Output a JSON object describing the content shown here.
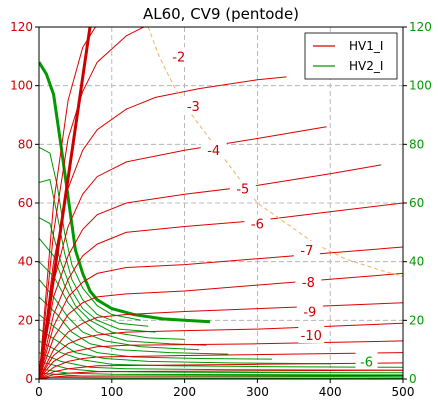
{
  "chart_data": {
    "type": "line",
    "title": "AL60, CV9 (pentode)",
    "xlabel": "",
    "ylabel": "",
    "xlim": [
      0,
      500
    ],
    "ylim_left": [
      0,
      120
    ],
    "ylim_right": [
      0,
      120
    ],
    "x_ticks": [
      "0",
      "100",
      "200",
      "300",
      "400",
      "500"
    ],
    "y_ticks_left": [
      "0",
      "20",
      "40",
      "60",
      "80",
      "100",
      "120"
    ],
    "y_ticks_right": [
      "0",
      "20",
      "40",
      "60",
      "80",
      "100",
      "120"
    ],
    "grid": true,
    "legend": {
      "position": "top-right",
      "entries": [
        {
          "label": "HV1_I",
          "color": "#dd0000"
        },
        {
          "label": "HV2_I",
          "color": "#009900"
        }
      ]
    },
    "colors": {
      "hv1": "#dd0000",
      "hv2": "#009900",
      "loadline": "#cc0000",
      "dissipation": "#f0b060",
      "grid": "#aaaaaa"
    },
    "hv1_series": [
      {
        "label": "-2",
        "points": [
          [
            0,
            0
          ],
          [
            20,
            60
          ],
          [
            40,
            95
          ],
          [
            60,
            113
          ],
          [
            80,
            121
          ]
        ],
        "label_at": [
          192,
          110
        ]
      },
      {
        "label": "",
        "points": [
          [
            0,
            0
          ],
          [
            20,
            50
          ],
          [
            40,
            82
          ],
          [
            60,
            98
          ],
          [
            80,
            108
          ],
          [
            120,
            117
          ],
          [
            160,
            122
          ]
        ]
      },
      {
        "label": "-3",
        "points": [
          [
            0,
            0
          ],
          [
            20,
            40
          ],
          [
            40,
            65
          ],
          [
            60,
            78
          ],
          [
            80,
            85
          ],
          [
            120,
            92
          ],
          [
            160,
            96
          ],
          [
            220,
            99
          ],
          [
            300,
            102
          ],
          [
            340,
            103
          ]
        ],
        "label_at": [
          212,
          93
        ]
      },
      {
        "label": "-4",
        "points": [
          [
            0,
            0
          ],
          [
            20,
            33
          ],
          [
            40,
            52
          ],
          [
            60,
            63
          ],
          [
            80,
            69
          ],
          [
            120,
            74
          ],
          [
            200,
            78
          ],
          [
            300,
            82
          ],
          [
            395,
            86
          ]
        ],
        "label_at": [
          240,
          78
        ]
      },
      {
        "label": "-5",
        "points": [
          [
            0,
            0
          ],
          [
            20,
            28
          ],
          [
            40,
            42
          ],
          [
            60,
            51
          ],
          [
            80,
            56
          ],
          [
            120,
            60
          ],
          [
            200,
            63
          ],
          [
            300,
            66
          ],
          [
            400,
            70
          ],
          [
            470,
            73
          ]
        ],
        "label_at": [
          280,
          65
        ]
      },
      {
        "label": "-6",
        "points": [
          [
            0,
            0
          ],
          [
            20,
            22
          ],
          [
            40,
            34
          ],
          [
            60,
            42
          ],
          [
            80,
            46
          ],
          [
            120,
            50
          ],
          [
            200,
            52
          ],
          [
            300,
            54
          ],
          [
            400,
            57
          ],
          [
            500,
            60
          ]
        ],
        "label_at": [
          300,
          53
        ]
      },
      {
        "label": "-7",
        "points": [
          [
            0,
            0
          ],
          [
            20,
            18
          ],
          [
            40,
            28
          ],
          [
            60,
            33
          ],
          [
            80,
            36
          ],
          [
            120,
            38
          ],
          [
            200,
            39
          ],
          [
            300,
            41
          ],
          [
            400,
            43
          ],
          [
            500,
            45
          ]
        ],
        "label_at": [
          368,
          44
        ]
      },
      {
        "label": "-8",
        "points": [
          [
            0,
            0
          ],
          [
            20,
            14
          ],
          [
            40,
            22
          ],
          [
            60,
            26
          ],
          [
            80,
            28
          ],
          [
            120,
            29
          ],
          [
            200,
            30
          ],
          [
            300,
            32
          ],
          [
            400,
            34
          ],
          [
            500,
            36
          ]
        ],
        "label_at": [
          370,
          33
        ]
      },
      {
        "label": "-9",
        "points": [
          [
            0,
            0
          ],
          [
            20,
            10
          ],
          [
            40,
            16
          ],
          [
            60,
            19
          ],
          [
            80,
            21
          ],
          [
            120,
            22
          ],
          [
            200,
            23
          ],
          [
            300,
            24
          ],
          [
            400,
            25
          ],
          [
            500,
            26
          ]
        ],
        "label_at": [
          372,
          23
        ]
      },
      {
        "label": "-10",
        "points": [
          [
            0,
            0
          ],
          [
            20,
            8
          ],
          [
            40,
            12
          ],
          [
            60,
            14
          ],
          [
            80,
            15
          ],
          [
            120,
            16
          ],
          [
            200,
            16.5
          ],
          [
            300,
            17
          ],
          [
            400,
            18
          ],
          [
            500,
            19
          ]
        ],
        "label_at": [
          374,
          15
        ]
      },
      {
        "label": "",
        "points": [
          [
            0,
            0
          ],
          [
            20,
            6
          ],
          [
            40,
            9
          ],
          [
            60,
            10
          ],
          [
            80,
            11
          ],
          [
            120,
            11.5
          ],
          [
            300,
            12
          ],
          [
            500,
            13
          ]
        ]
      },
      {
        "label": "",
        "points": [
          [
            0,
            0
          ],
          [
            20,
            4
          ],
          [
            40,
            6
          ],
          [
            60,
            7
          ],
          [
            80,
            7.5
          ],
          [
            200,
            8
          ],
          [
            500,
            9
          ]
        ]
      },
      {
        "label": "",
        "points": [
          [
            0,
            0
          ],
          [
            20,
            2.5
          ],
          [
            40,
            3.5
          ],
          [
            60,
            4
          ],
          [
            80,
            4.5
          ],
          [
            300,
            5
          ],
          [
            500,
            5.5
          ]
        ]
      },
      {
        "label": "",
        "points": [
          [
            0,
            0
          ],
          [
            20,
            1.5
          ],
          [
            40,
            2
          ],
          [
            80,
            2.5
          ],
          [
            500,
            3
          ]
        ]
      },
      {
        "label": "",
        "points": [
          [
            0,
            0
          ],
          [
            20,
            0.7
          ],
          [
            40,
            1
          ],
          [
            500,
            1.2
          ]
        ]
      }
    ],
    "hv2_series": [
      {
        "label": "",
        "points": [
          [
            0,
            108
          ],
          [
            10,
            104
          ],
          [
            20,
            97
          ],
          [
            30,
            80
          ],
          [
            40,
            62
          ],
          [
            50,
            44
          ],
          [
            60,
            36
          ],
          [
            70,
            30
          ],
          [
            80,
            27
          ],
          [
            100,
            24
          ],
          [
            130,
            22
          ],
          [
            170,
            20.5
          ],
          [
            200,
            20
          ],
          [
            235,
            19.5
          ]
        ],
        "bold": true
      },
      {
        "label": "",
        "points": [
          [
            0,
            79
          ],
          [
            15,
            77
          ],
          [
            25,
            66
          ],
          [
            35,
            50
          ],
          [
            45,
            39
          ],
          [
            60,
            31
          ],
          [
            80,
            25
          ],
          [
            100,
            22
          ],
          [
            140,
            20
          ]
        ]
      },
      {
        "label": "",
        "points": [
          [
            0,
            67
          ],
          [
            15,
            68
          ],
          [
            25,
            56
          ],
          [
            35,
            43
          ],
          [
            45,
            34
          ],
          [
            60,
            27
          ],
          [
            80,
            22
          ],
          [
            110,
            19
          ],
          [
            150,
            18
          ]
        ]
      },
      {
        "label": "",
        "points": [
          [
            0,
            55
          ],
          [
            15,
            53
          ],
          [
            30,
            40
          ],
          [
            45,
            30
          ],
          [
            60,
            24
          ],
          [
            80,
            20
          ],
          [
            110,
            17
          ],
          [
            160,
            16
          ]
        ]
      },
      {
        "label": "",
        "points": [
          [
            0,
            48
          ],
          [
            20,
            42
          ],
          [
            35,
            32
          ],
          [
            50,
            25
          ],
          [
            70,
            20
          ],
          [
            100,
            16
          ],
          [
            150,
            14
          ],
          [
            200,
            13.5
          ]
        ]
      },
      {
        "label": "",
        "points": [
          [
            0,
            40
          ],
          [
            20,
            35
          ],
          [
            40,
            26
          ],
          [
            60,
            20
          ],
          [
            80,
            16
          ],
          [
            120,
            13
          ],
          [
            180,
            12
          ],
          [
            230,
            11.5
          ]
        ]
      },
      {
        "label": "",
        "points": [
          [
            0,
            34
          ],
          [
            20,
            28
          ],
          [
            40,
            21
          ],
          [
            60,
            16
          ],
          [
            90,
            13
          ],
          [
            140,
            11
          ],
          [
            220,
            10
          ]
        ]
      },
      {
        "label": "",
        "points": [
          [
            0,
            28
          ],
          [
            25,
            22
          ],
          [
            45,
            16
          ],
          [
            70,
            12
          ],
          [
            110,
            10
          ],
          [
            180,
            9
          ],
          [
            260,
            8.5
          ]
        ]
      },
      {
        "label": "",
        "points": [
          [
            0,
            22
          ],
          [
            25,
            17
          ],
          [
            50,
            12
          ],
          [
            80,
            9
          ],
          [
            130,
            7.5
          ],
          [
            220,
            7
          ],
          [
            320,
            6.8
          ]
        ]
      },
      {
        "label": "",
        "points": [
          [
            0,
            17
          ],
          [
            25,
            13
          ],
          [
            50,
            9
          ],
          [
            90,
            7
          ],
          [
            150,
            6
          ],
          [
            260,
            5.5
          ],
          [
            400,
            5.2
          ]
        ]
      },
      {
        "label": "",
        "points": [
          [
            0,
            13
          ],
          [
            30,
            9
          ],
          [
            60,
            6.5
          ],
          [
            100,
            5
          ],
          [
            180,
            4.5
          ],
          [
            330,
            4.2
          ],
          [
            500,
            4
          ]
        ]
      },
      {
        "label": "",
        "points": [
          [
            0,
            9
          ],
          [
            30,
            6
          ],
          [
            70,
            4
          ],
          [
            120,
            3.5
          ],
          [
            250,
            3.2
          ],
          [
            500,
            3
          ]
        ]
      },
      {
        "label": "",
        "points": [
          [
            0,
            6
          ],
          [
            40,
            3.5
          ],
          [
            80,
            2.6
          ],
          [
            200,
            2.3
          ],
          [
            500,
            2.1
          ]
        ]
      },
      {
        "label": "",
        "points": [
          [
            0,
            3.5
          ],
          [
            40,
            2
          ],
          [
            100,
            1.6
          ],
          [
            500,
            1.4
          ]
        ]
      },
      {
        "label": "",
        "points": [
          [
            0,
            2
          ],
          [
            60,
            1
          ],
          [
            500,
            0.8
          ]
        ]
      },
      {
        "label": "",
        "points": [
          [
            0,
            0.6
          ],
          [
            80,
            0.4
          ],
          [
            500,
            0.3
          ]
        ]
      }
    ],
    "green_labels": [
      {
        "label": "-6",
        "at": [
          450,
          6
        ]
      }
    ],
    "load_line": {
      "points": [
        [
          0,
          0
        ],
        [
          70,
          120
        ]
      ],
      "color": "#cc0000"
    },
    "dissipation_curve": {
      "points": [
        [
          150,
          120
        ],
        [
          165,
          110
        ],
        [
          185,
          100
        ],
        [
          210,
          90
        ],
        [
          240,
          80
        ],
        [
          270,
          70
        ],
        [
          300,
          60
        ],
        [
          340,
          53
        ],
        [
          380,
          46
        ],
        [
          420,
          41
        ],
        [
          470,
          37
        ],
        [
          500,
          35
        ]
      ],
      "color": "#f0b060"
    }
  }
}
